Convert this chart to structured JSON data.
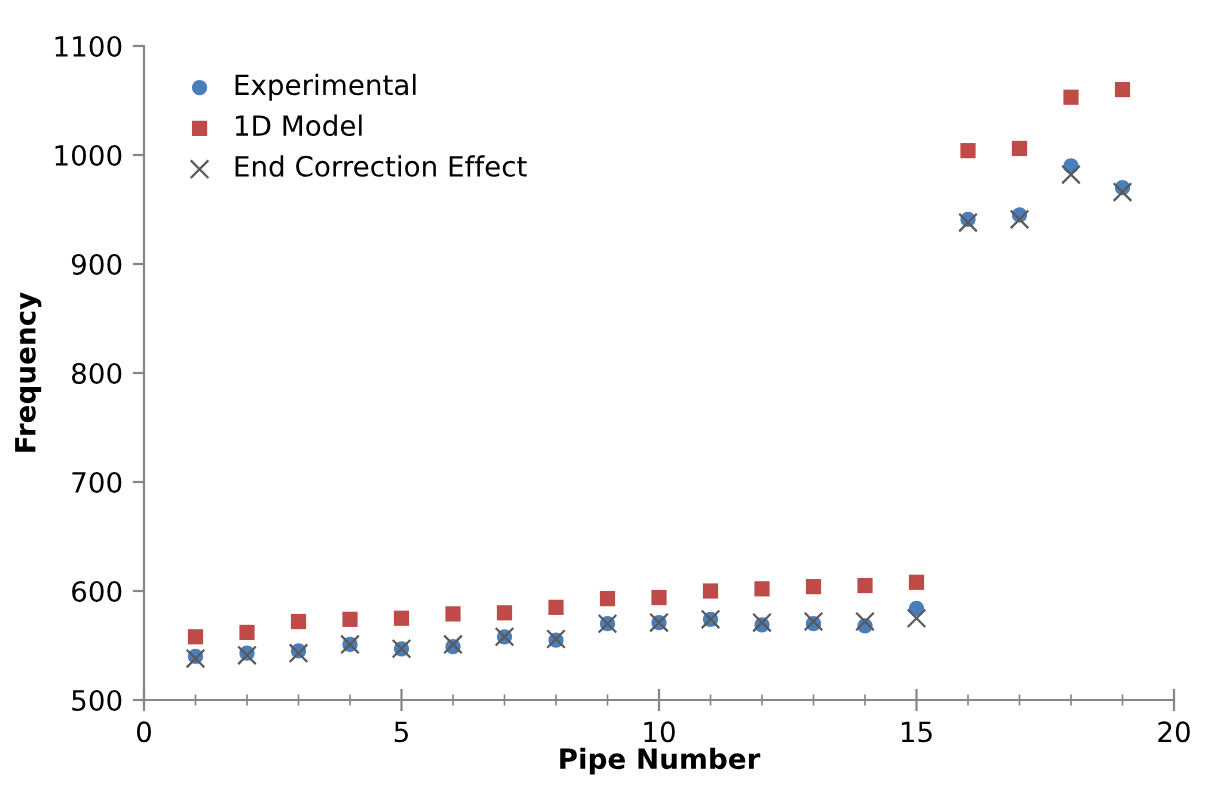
{
  "chart_data": {
    "type": "scatter",
    "xlabel": "Pipe Number",
    "ylabel": "Frequency",
    "x": [
      1,
      2,
      3,
      4,
      5,
      6,
      7,
      8,
      9,
      10,
      11,
      12,
      13,
      14,
      15,
      16,
      17,
      18,
      19
    ],
    "series": [
      {
        "name": "Experimental",
        "color": "#4a7ebb",
        "marker": "circle",
        "values": [
          540,
          543,
          545,
          551,
          547,
          549,
          558,
          555,
          570,
          571,
          574,
          569,
          570,
          568,
          584,
          941,
          945,
          990,
          970
        ]
      },
      {
        "name": "1D Model",
        "color": "#be4b48",
        "marker": "square",
        "values": [
          558,
          562,
          572,
          574,
          575,
          579,
          580,
          585,
          593,
          594,
          600,
          602,
          604,
          605,
          608,
          1004,
          1006,
          1053,
          1060
        ]
      },
      {
        "name": "End Correction Effect",
        "color": "#595959",
        "marker": "cross",
        "values": [
          538,
          541,
          543,
          551,
          547,
          551,
          558,
          556,
          570,
          571,
          574,
          571,
          572,
          572,
          575,
          938,
          941,
          982,
          966
        ]
      }
    ],
    "xlim": [
      0,
      20
    ],
    "ylim": [
      500,
      1100
    ],
    "xticks": [
      0,
      5,
      10,
      15,
      20
    ],
    "yticks": [
      500,
      600,
      700,
      800,
      900,
      1000,
      1100
    ],
    "grid": false,
    "legend": "top left"
  }
}
